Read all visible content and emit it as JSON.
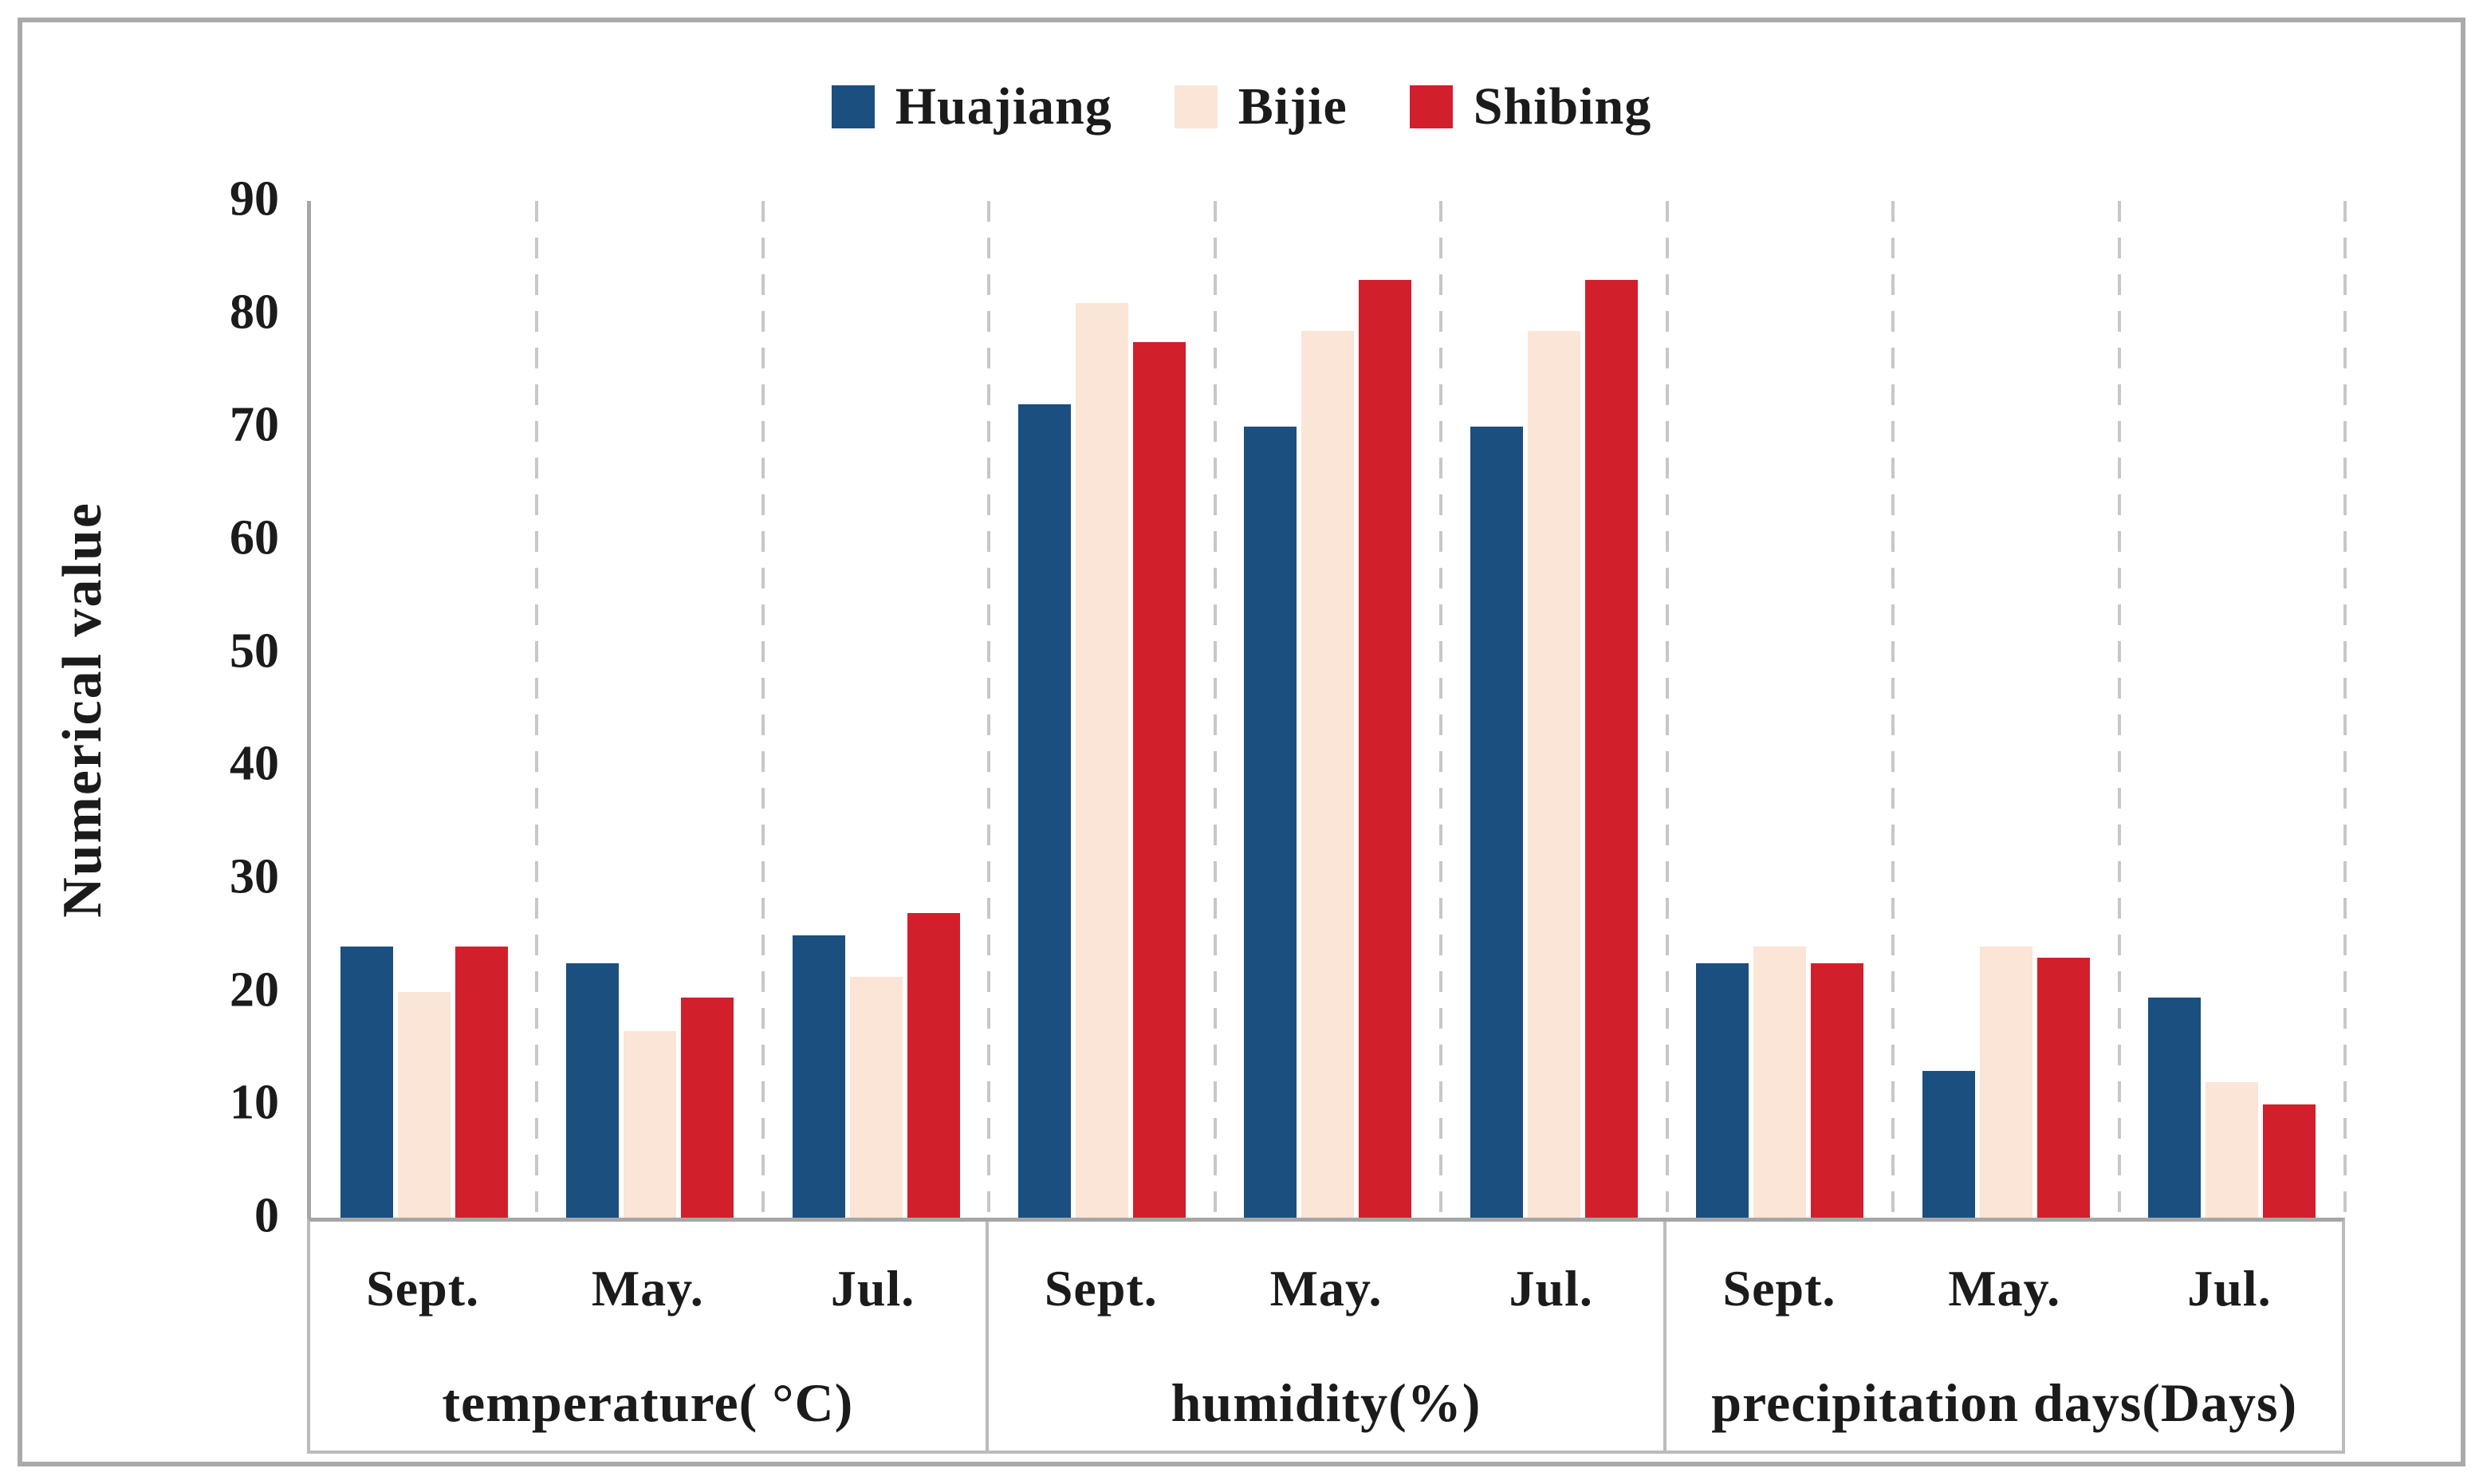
{
  "chart_data": {
    "type": "bar",
    "title": "",
    "ylabel": "Numerical value",
    "ylim": [
      0,
      90
    ],
    "yticks": [
      90,
      80,
      70,
      60,
      50,
      40,
      30,
      20,
      10,
      0
    ],
    "legend_position": "top-center",
    "grid": "vertical-dashed-between-clusters",
    "groups": [
      {
        "label": "temperature( °C)",
        "categories": [
          "Sept.",
          "May.",
          "Jul."
        ]
      },
      {
        "label": "humidity(%)",
        "categories": [
          "Sept.",
          "May.",
          "Jul."
        ]
      },
      {
        "label": "precipitation days(Days)",
        "categories": [
          "Sept.",
          "May.",
          "Jul."
        ]
      }
    ],
    "series": [
      {
        "name": "Huajiang",
        "color": "#1A4F80",
        "values": [
          [
            24,
            22.5,
            25
          ],
          [
            72,
            70,
            70
          ],
          [
            22.5,
            13,
            19.5
          ]
        ]
      },
      {
        "name": "Bijie",
        "color": "#FBE5D6",
        "values": [
          [
            20,
            16.5,
            21.3
          ],
          [
            81,
            78.5,
            78.5
          ],
          [
            24,
            24,
            12
          ]
        ]
      },
      {
        "name": "Shibing",
        "color": "#D21F2C",
        "values": [
          [
            24,
            19.5,
            27
          ],
          [
            77.5,
            83,
            83
          ],
          [
            22.5,
            23,
            10
          ]
        ]
      }
    ],
    "colors": {
      "axis_line": "#a6a6a6",
      "table_border": "#bbbbbb",
      "gridline": "#c7c7c7",
      "text": "#1b1b1b",
      "frame": "#aaaaaa",
      "background": "#ffffff"
    }
  }
}
